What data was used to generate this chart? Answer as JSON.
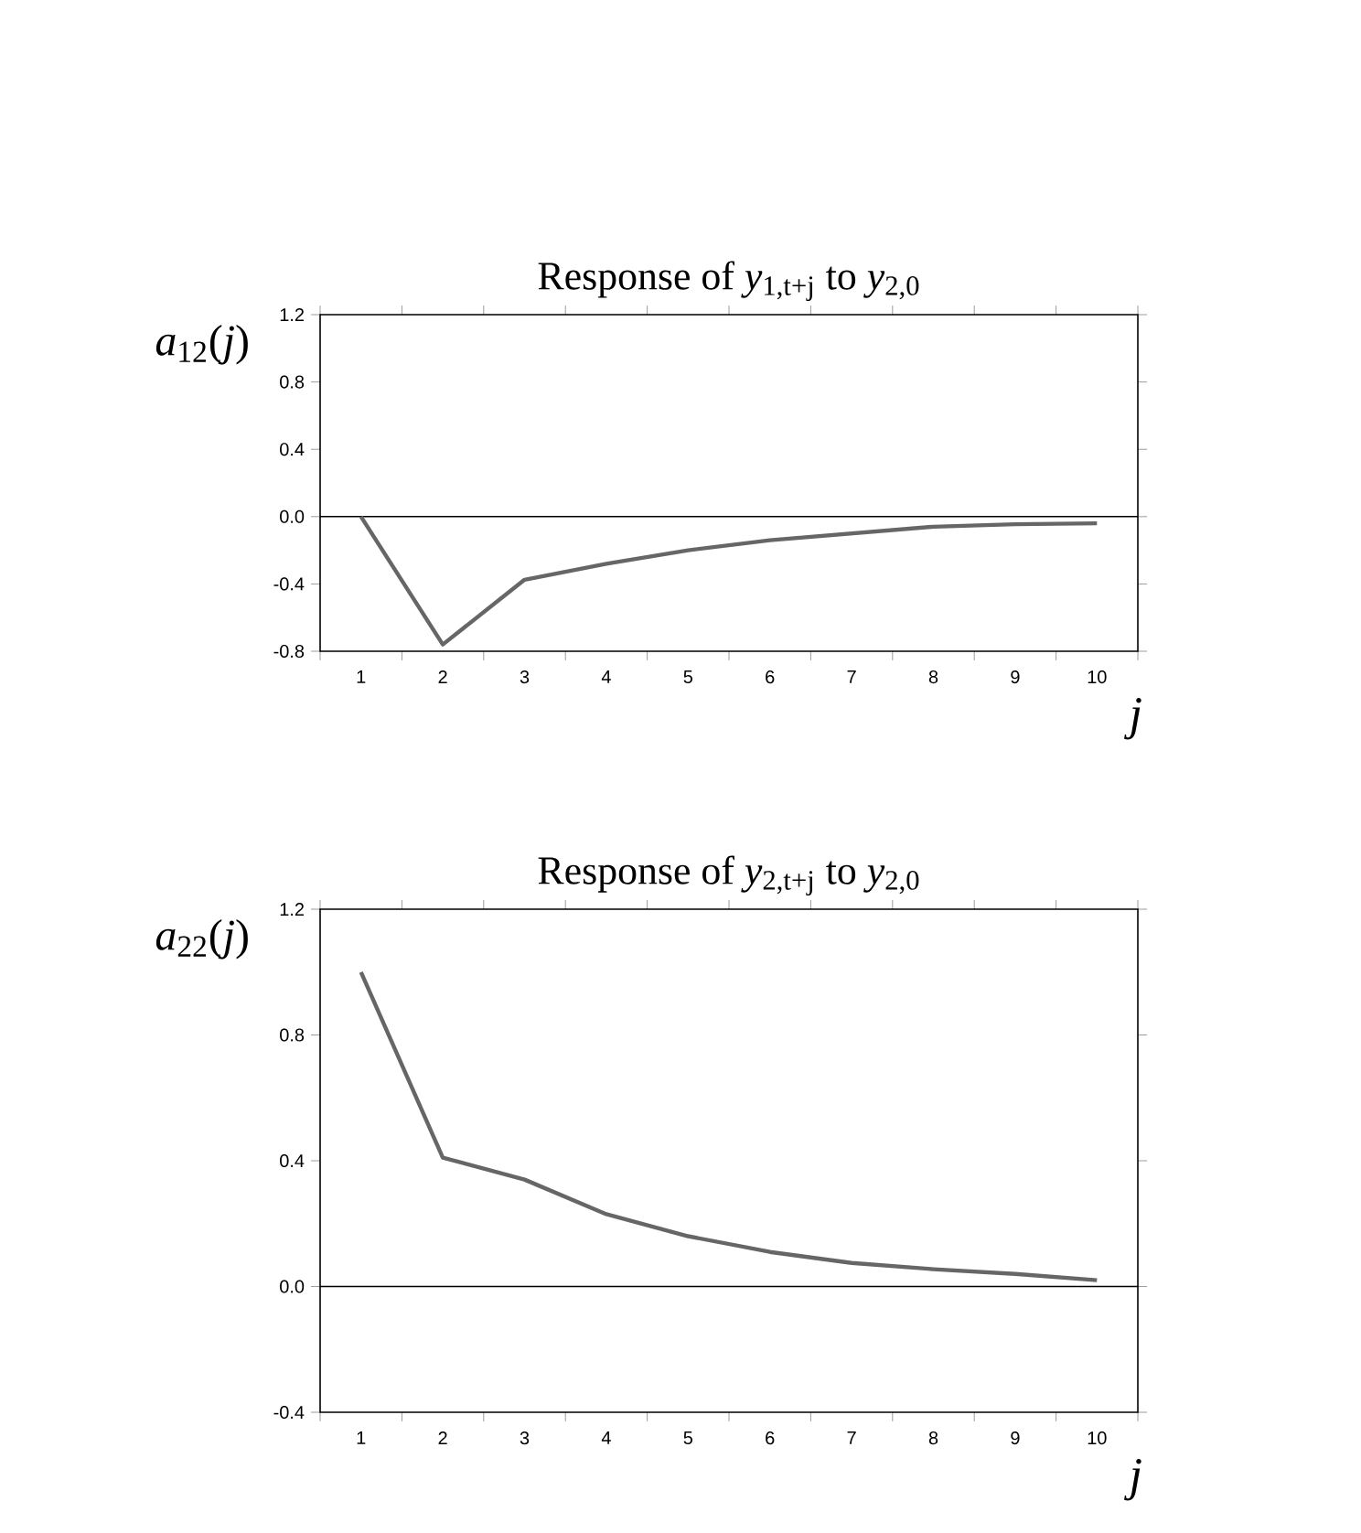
{
  "chart_data": [
    {
      "type": "line",
      "title": "Response of *y*$_{1,t+j}$ to *y*$_{2,0}$",
      "xlabel": "*j*",
      "ylabel": "*a*$_{12}$(*j*)",
      "categories": [
        "1",
        "2",
        "3",
        "4",
        "5",
        "6",
        "7",
        "8",
        "9",
        "10"
      ],
      "values": [
        0.0,
        -0.76,
        -0.375,
        -0.28,
        -0.2,
        -0.14,
        -0.1,
        -0.06,
        -0.045,
        -0.04
      ],
      "color": "#666666",
      "marker": "none",
      "line_style": "solid",
      "grid": false,
      "ylim": [
        -0.8,
        1.2
      ],
      "yticks": [
        {
          "value": -0.8,
          "label": "-0.8"
        },
        {
          "value": -0.4,
          "label": "-0.4"
        },
        {
          "value": 0,
          "label": "0.0"
        },
        {
          "value": 0.4,
          "label": "0.4"
        },
        {
          "value": 0.8,
          "label": "0.8"
        },
        {
          "value": 1.2,
          "label": "1.2"
        }
      ],
      "ref_lines": [
        {
          "axis": "y",
          "value": 0,
          "color": "#000000"
        }
      ]
    },
    {
      "type": "line",
      "title": "Response of *y*$_{2,t+j}$ to *y*$_{2,0}$",
      "xlabel": "*j*",
      "ylabel": "*a*$_{22}$(*j*)",
      "categories": [
        "1",
        "2",
        "3",
        "4",
        "5",
        "6",
        "7",
        "8",
        "9",
        "10"
      ],
      "values": [
        1.0,
        0.41,
        0.34,
        0.23,
        0.16,
        0.11,
        0.075,
        0.055,
        0.04,
        0.02
      ],
      "color": "#666666",
      "marker": "none",
      "line_style": "solid",
      "grid": false,
      "ylim": [
        -0.4,
        1.2
      ],
      "yticks": [
        {
          "value": -0.4,
          "label": "-0.4"
        },
        {
          "value": 0,
          "label": "0.0"
        },
        {
          "value": 0.4,
          "label": "0.4"
        },
        {
          "value": 0.8,
          "label": "0.8"
        },
        {
          "value": 1.2,
          "label": "1.2"
        }
      ],
      "ref_lines": [
        {
          "axis": "y",
          "value": 0,
          "color": "#000000"
        }
      ]
    }
  ]
}
